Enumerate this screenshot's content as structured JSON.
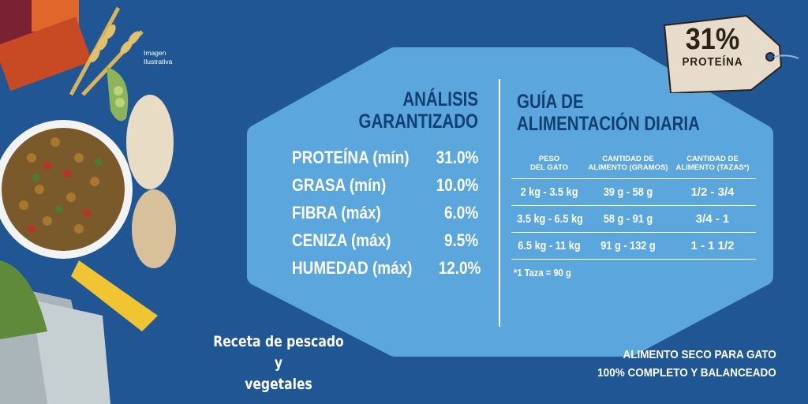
{
  "image_note": {
    "line1": "Imagen",
    "line2": "Ilustrativa"
  },
  "analysis": {
    "title_line1": "ANÁLISIS",
    "title_line2": "GARANTIZADO",
    "rows": [
      {
        "label": "PROTEÍNA (mín)",
        "value": "31.0%"
      },
      {
        "label": "GRASA (mín)",
        "value": "10.0%"
      },
      {
        "label": "FIBRA (máx)",
        "value": "6.0%"
      },
      {
        "label": "CENIZA (máx)",
        "value": "9.5%"
      },
      {
        "label": "HUMEDAD (máx)",
        "value": "12.0%"
      }
    ]
  },
  "feeding": {
    "title_line1": "GUÍA DE",
    "title_line2": "ALIMENTACIÓN DIARIA",
    "headers": {
      "weight_1": "PESO",
      "weight_2": "DEL GATO",
      "grams_1": "CANTIDAD DE",
      "grams_2": "ALIMENTO (GRAMOS)",
      "cups_1": "CANTIDAD DE",
      "cups_2": "ALIMENTO (TAZAS*)"
    },
    "rows": [
      {
        "weight": "2 kg - 3.5 kg",
        "grams": "39 g - 58 g",
        "cups": "1/2 - 3/4"
      },
      {
        "weight": "3.5 kg - 6.5 kg",
        "grams": "58 g - 91 g",
        "cups": "3/4 - 1"
      },
      {
        "weight": "6.5 kg - 11 kg",
        "grams": "91 g - 132 g",
        "cups": "1 - 1 1/2"
      }
    ],
    "note": "*1 Taza = 90 g"
  },
  "tag": {
    "percent": "31%",
    "label": "PROTEÍNA"
  },
  "recipe": {
    "line1": "Receta de pescado y",
    "line2": "vegetales"
  },
  "footer": {
    "line1": "ALIMENTO SECO PARA GATO",
    "line2": "100% COMPLETO Y BALANCEADO"
  },
  "colors": {
    "background": "#1f5693",
    "panel": "#5ba6dc",
    "title": "#123f72",
    "tag": "#e7dccb"
  }
}
